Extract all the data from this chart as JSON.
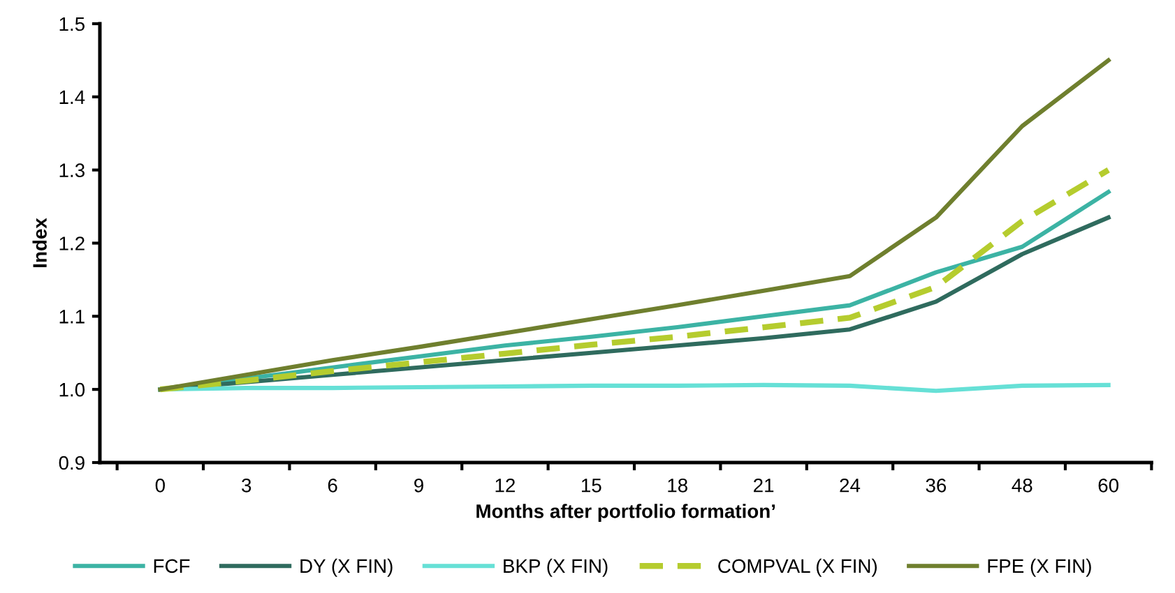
{
  "chart_data": {
    "type": "line",
    "xlabel": "Months after portfolio formation’",
    "ylabel": "Index",
    "categories": [
      "0",
      "3",
      "6",
      "9",
      "12",
      "15",
      "18",
      "21",
      "24",
      "36",
      "48",
      "60"
    ],
    "series": [
      {
        "name": "FCF",
        "color": "#3cb3a4",
        "values": [
          1.0,
          1.015,
          1.03,
          1.045,
          1.06,
          1.072,
          1.085,
          1.1,
          1.115,
          1.16,
          1.195,
          1.27
        ]
      },
      {
        "name": "DY (X FIN)",
        "color": "#2f6b5e",
        "values": [
          1.0,
          1.01,
          1.02,
          1.03,
          1.04,
          1.05,
          1.06,
          1.07,
          1.082,
          1.12,
          1.185,
          1.235
        ]
      },
      {
        "name": "BKP (X FIN)",
        "color": "#66e0d6",
        "values": [
          1.0,
          1.002,
          1.002,
          1.003,
          1.004,
          1.005,
          1.005,
          1.006,
          1.005,
          0.998,
          1.005,
          1.006
        ]
      },
      {
        "name": "COMPVAL (X FIN)",
        "color": "#b5cc2e",
        "line_style": "dashed",
        "values": [
          1.0,
          1.012,
          1.025,
          1.037,
          1.049,
          1.061,
          1.072,
          1.085,
          1.098,
          1.14,
          1.23,
          1.3
        ]
      },
      {
        "name": "FPE (X FIN)",
        "color": "#6f7f2e",
        "values": [
          1.0,
          1.02,
          1.04,
          1.058,
          1.077,
          1.096,
          1.115,
          1.135,
          1.155,
          1.235,
          1.36,
          1.45
        ]
      }
    ],
    "ylim": [
      0.9,
      1.5
    ],
    "yticks": [
      0.9,
      {
        "value": 1.0,
        "label": "1.0"
      },
      1.1,
      1.2,
      1.3,
      1.4,
      1.5
    ],
    "legend": "bottom",
    "grid": false,
    "line_style": "solid",
    "marker": "none"
  }
}
